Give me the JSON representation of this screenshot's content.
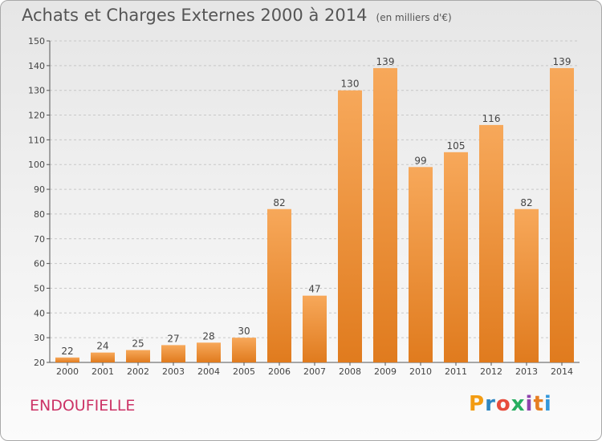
{
  "header": {
    "title": "Achats et Charges Externes 2000 à 2014",
    "subtitle": "(en milliers d'€)"
  },
  "footer": {
    "commune": "ENDOUFIELLE",
    "logo_letters": [
      "P",
      "r",
      "o",
      "x",
      "i",
      "t",
      "i"
    ],
    "logo_colors": [
      "#f39c12",
      "#2e86c1",
      "#e74c3c",
      "#27ae60",
      "#8e44ad",
      "#e67e22",
      "#3498db"
    ]
  },
  "chart_data": {
    "type": "bar",
    "categories": [
      "2000",
      "2001",
      "2002",
      "2003",
      "2004",
      "2005",
      "2006",
      "2007",
      "2008",
      "2009",
      "2010",
      "2011",
      "2012",
      "2013",
      "2014"
    ],
    "values": [
      22,
      24,
      25,
      27,
      28,
      30,
      82,
      47,
      130,
      139,
      99,
      105,
      116,
      82,
      139
    ],
    "ylim": [
      20,
      150
    ],
    "yticks": [
      20,
      30,
      40,
      50,
      60,
      70,
      80,
      90,
      100,
      110,
      120,
      130,
      140,
      150
    ],
    "grid": true,
    "bar_color": "#f39a3d"
  }
}
